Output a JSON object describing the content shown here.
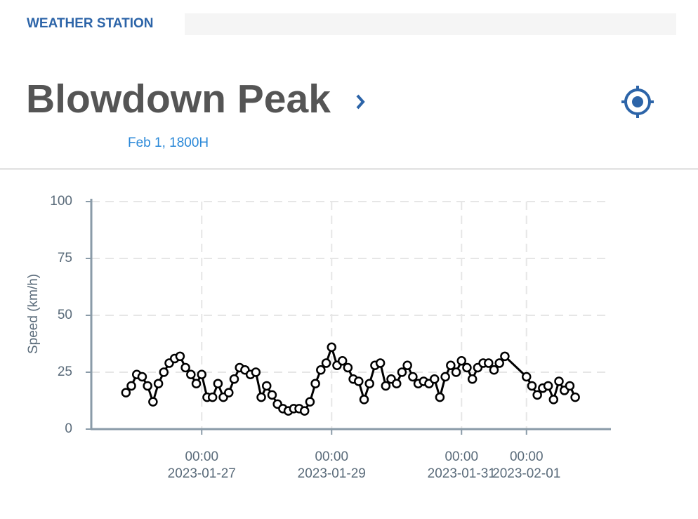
{
  "header": {
    "label": "WEATHER STATION"
  },
  "station": {
    "name": "Blowdown Peak",
    "timestamp": "Feb 1, 1800H"
  },
  "chart_data": {
    "type": "line",
    "ylabel": "Speed (km/h)",
    "ylim": [
      0,
      100
    ],
    "yticks": [
      0,
      25,
      50,
      75,
      100
    ],
    "grid": true,
    "xlim": [
      "2023-01-25T07:12",
      "2023-02-02T07:12"
    ],
    "xticks": [
      {
        "value": "2023-01-27T00:00",
        "label": [
          "00:00",
          "2023-01-27"
        ]
      },
      {
        "value": "2023-01-29T00:00",
        "label": [
          "00:00",
          "2023-01-29"
        ]
      },
      {
        "value": "2023-01-31T00:00",
        "label": [
          "00:00",
          "2023-01-31"
        ]
      },
      {
        "value": "2023-02-01T00:00",
        "label": [
          "00:00",
          "2023-02-01"
        ]
      }
    ],
    "x": [
      "2023-01-25T20:00",
      "2023-01-25T22:00",
      "2023-01-26T00:00",
      "2023-01-26T02:00",
      "2023-01-26T04:00",
      "2023-01-26T06:00",
      "2023-01-26T08:00",
      "2023-01-26T10:00",
      "2023-01-26T12:00",
      "2023-01-26T14:00",
      "2023-01-26T16:00",
      "2023-01-26T18:00",
      "2023-01-26T20:00",
      "2023-01-26T22:00",
      "2023-01-27T00:00",
      "2023-01-27T02:00",
      "2023-01-27T04:00",
      "2023-01-27T06:00",
      "2023-01-27T08:00",
      "2023-01-27T10:00",
      "2023-01-27T12:00",
      "2023-01-27T14:00",
      "2023-01-27T16:00",
      "2023-01-27T18:00",
      "2023-01-27T20:00",
      "2023-01-27T22:00",
      "2023-01-28T00:00",
      "2023-01-28T02:00",
      "2023-01-28T04:00",
      "2023-01-28T06:00",
      "2023-01-28T08:00",
      "2023-01-28T10:00",
      "2023-01-28T12:00",
      "2023-01-28T14:00",
      "2023-01-28T16:00",
      "2023-01-28T18:00",
      "2023-01-28T20:00",
      "2023-01-28T22:00",
      "2023-01-29T00:00",
      "2023-01-29T02:00",
      "2023-01-29T04:00",
      "2023-01-29T06:00",
      "2023-01-29T08:00",
      "2023-01-29T10:00",
      "2023-01-29T12:00",
      "2023-01-29T14:00",
      "2023-01-29T16:00",
      "2023-01-29T18:00",
      "2023-01-29T20:00",
      "2023-01-29T22:00",
      "2023-01-30T00:00",
      "2023-01-30T02:00",
      "2023-01-30T04:00",
      "2023-01-30T06:00",
      "2023-01-30T08:00",
      "2023-01-30T10:00",
      "2023-01-30T12:00",
      "2023-01-30T14:00",
      "2023-01-30T16:00",
      "2023-01-30T18:00",
      "2023-01-30T20:00",
      "2023-01-30T22:00",
      "2023-01-31T00:00",
      "2023-01-31T02:00",
      "2023-01-31T04:00",
      "2023-01-31T06:00",
      "2023-01-31T08:00",
      "2023-01-31T10:00",
      "2023-01-31T12:00",
      "2023-01-31T14:00",
      "2023-01-31T16:00",
      "2023-02-01T00:00",
      "2023-02-01T02:00",
      "2023-02-01T04:00",
      "2023-02-01T06:00",
      "2023-02-01T08:00",
      "2023-02-01T10:00",
      "2023-02-01T12:00",
      "2023-02-01T14:00",
      "2023-02-01T16:00",
      "2023-02-01T18:00"
    ],
    "series": [
      {
        "color": "#000000",
        "values": [
          16,
          19,
          24,
          23,
          19,
          12,
          20,
          25,
          29,
          31,
          32,
          27,
          24,
          20,
          24,
          14,
          14,
          20,
          14,
          16,
          22,
          27,
          26,
          24,
          25,
          14,
          19,
          15,
          11,
          9,
          8,
          9,
          9,
          8,
          12,
          20,
          26,
          29,
          36,
          28,
          30,
          27,
          22,
          21,
          13,
          20,
          28,
          29,
          19,
          22,
          20,
          25,
          28,
          23,
          20,
          21,
          20,
          22,
          14,
          23,
          28,
          25,
          30,
          27,
          22,
          27,
          29,
          29,
          26,
          29,
          32,
          23,
          19,
          15,
          18,
          19,
          13,
          21,
          17,
          19,
          14
        ]
      }
    ]
  }
}
